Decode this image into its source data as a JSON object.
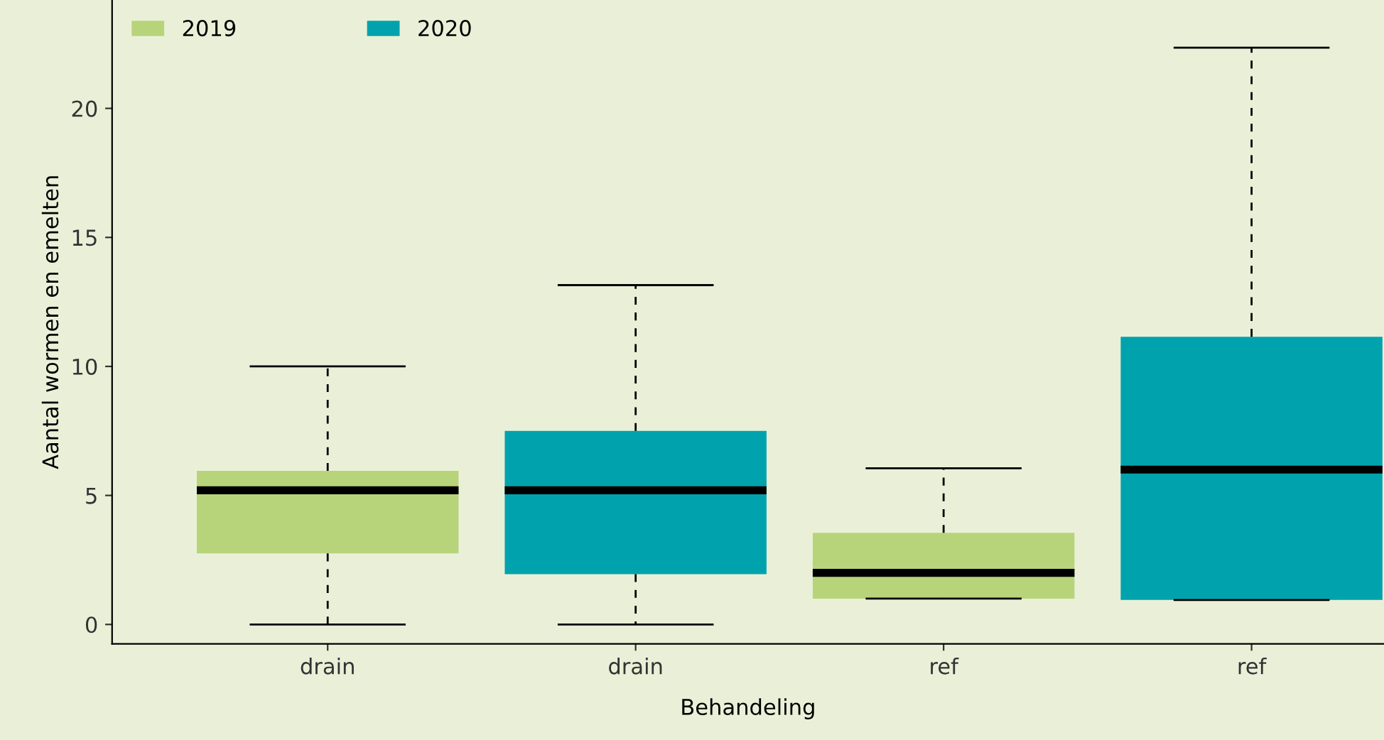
{
  "chart_data": {
    "type": "box",
    "xlabel": "Behandeling",
    "ylabel": "Aantal wormen en emelten",
    "categories": [
      "drain",
      "drain",
      "ref",
      "ref"
    ],
    "series": [
      {
        "name": "2019",
        "color": "#b8d47a",
        "boxes": [
          {
            "low": 0,
            "q1": 2.75,
            "median": 5.2,
            "q3": 5.95,
            "high": 10
          },
          null,
          {
            "low": 1.0,
            "q1": 1.0,
            "median": 2.0,
            "q3": 3.55,
            "high": 6.05
          },
          null
        ]
      },
      {
        "name": "2020",
        "color": "#00a3ad",
        "boxes": [
          null,
          {
            "low": 0,
            "q1": 1.95,
            "median": 5.2,
            "q3": 7.5,
            "high": 13.15
          },
          null,
          {
            "low": 0.95,
            "q1": 0.95,
            "median": 6.0,
            "q3": 11.15,
            "high": 22.35
          }
        ]
      }
    ],
    "ylim": [
      -0.75,
      24.2
    ],
    "yticks": [
      0,
      5,
      10,
      15,
      20
    ],
    "grid": false,
    "legend": "top left"
  }
}
